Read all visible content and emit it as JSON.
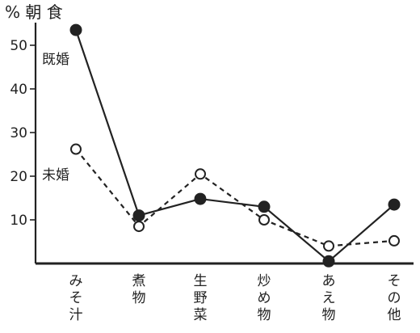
{
  "chart_data": {
    "type": "line",
    "title": "% 朝 食",
    "xlabel": "",
    "ylabel": "",
    "ylim": [
      0,
      55
    ],
    "yticks": [
      10,
      20,
      30,
      40,
      50
    ],
    "categories": [
      "みそ汁",
      "煮物",
      "生野菜",
      "炒め物",
      "あえ物",
      "その他"
    ],
    "series": [
      {
        "name": "既婚",
        "values": [
          53.5,
          11,
          14.8,
          13,
          0.5,
          13.5
        ],
        "line_style": "solid",
        "marker": "filled-circle",
        "color": "#222222"
      },
      {
        "name": "未婚",
        "values": [
          26.2,
          8.5,
          20.5,
          10,
          4,
          5.2
        ],
        "line_style": "dashed",
        "marker": "open-circle",
        "color": "#222222"
      }
    ],
    "grid": false,
    "legend": "inline-labels-left"
  }
}
